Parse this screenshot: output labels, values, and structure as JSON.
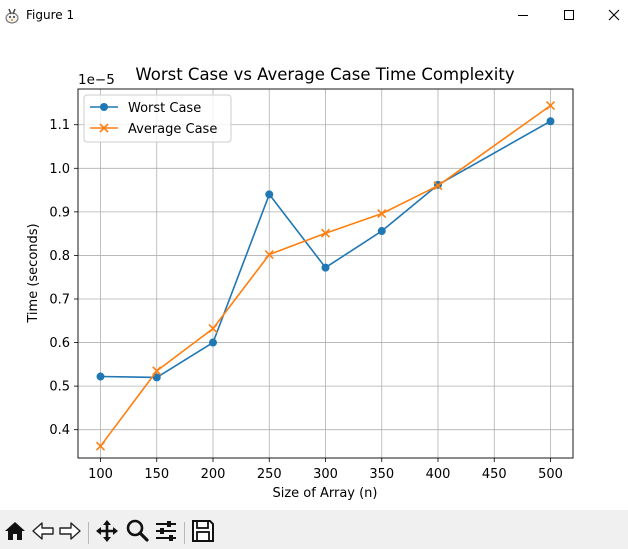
{
  "window": {
    "title": "Figure 1",
    "icons": [
      "app-icon",
      "minimize-icon",
      "maximize-icon",
      "close-icon"
    ]
  },
  "toolbar": {
    "buttons": [
      "home-icon",
      "back-icon",
      "forward-icon",
      "pan-icon",
      "zoom-icon",
      "configure-subplots-icon",
      "save-icon"
    ]
  },
  "chart_data": {
    "type": "line",
    "title": "Worst Case vs Average Case Time Complexity",
    "xlabel": "Size of Array (n)",
    "ylabel": "Time (seconds)",
    "offset_text": "1e−5",
    "x": [
      100,
      150,
      200,
      250,
      300,
      350,
      400,
      500
    ],
    "xlim": [
      80,
      520
    ],
    "ylim": [
      0.335,
      1.182
    ],
    "xticks": [
      100,
      150,
      200,
      250,
      300,
      350,
      400,
      450,
      500
    ],
    "xtick_labels": [
      "100",
      "150",
      "200",
      "250",
      "300",
      "350",
      "400",
      "450",
      "500"
    ],
    "yticks": [
      0.4,
      0.5,
      0.6,
      0.7,
      0.8,
      0.9,
      1.0,
      1.1
    ],
    "ytick_labels": [
      "0.4",
      "0.5",
      "0.6",
      "0.7",
      "0.8",
      "0.9",
      "1.0",
      "1.1"
    ],
    "grid": true,
    "legend_position": "top-left",
    "series": [
      {
        "name": "Worst Case",
        "color": "#1f77b4",
        "marker": "circle",
        "values": [
          0.522,
          0.52,
          0.6,
          0.94,
          0.772,
          0.856,
          0.962,
          1.108
        ]
      },
      {
        "name": "Average Case",
        "color": "#ff7f0e",
        "marker": "x",
        "values": [
          0.362,
          0.535,
          0.632,
          0.802,
          0.851,
          0.896,
          0.96,
          1.144
        ]
      }
    ]
  }
}
